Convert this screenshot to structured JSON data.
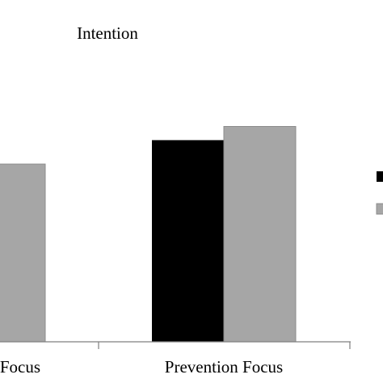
{
  "chart_data": {
    "type": "bar",
    "title": "Intention",
    "categories": [
      "Promotion Focus",
      "Prevention Focus"
    ],
    "visible_category_labels": [
      "Focus",
      "Prevention Focus"
    ],
    "series": [
      {
        "color": "#000000",
        "values": [
          null,
          5.9
        ]
      },
      {
        "color": "#a6a6a6",
        "values": [
          5.2,
          6.3
        ]
      }
    ],
    "ylim": [
      0,
      10
    ],
    "grid": false,
    "legend": "right",
    "xlabel": "",
    "ylabel": ""
  }
}
